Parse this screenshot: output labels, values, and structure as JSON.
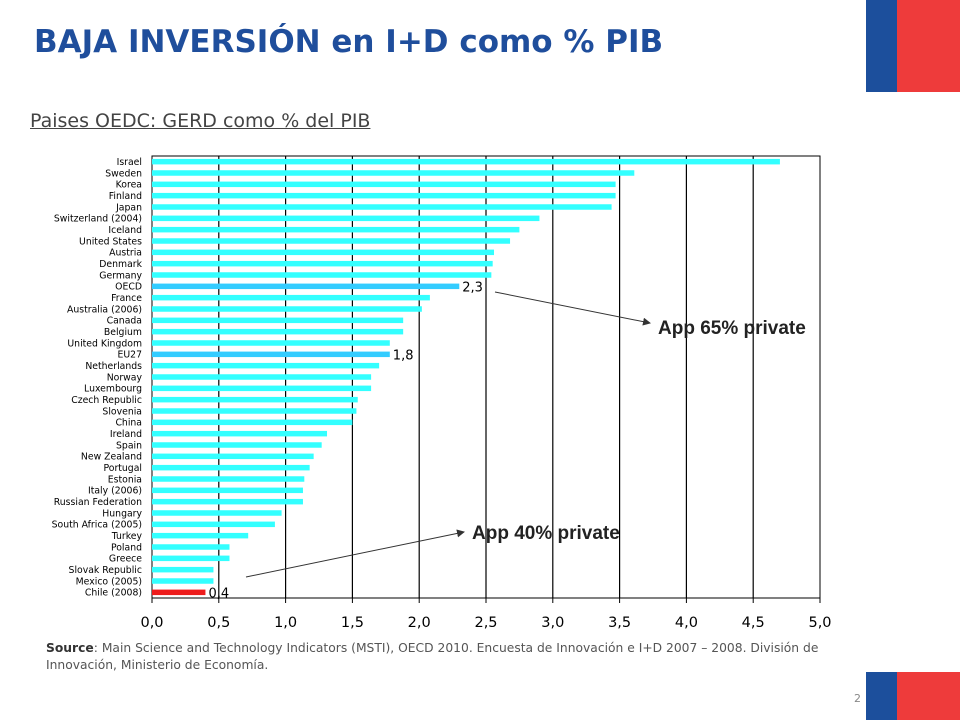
{
  "title": "BAJA INVERSIÓN en I+D como % PIB",
  "subtitle": "Paises OEDC: GERD como % del PIB",
  "source": {
    "label": "Source",
    "text": ":  Main Science and Technology Indicators (MSTI), OECD 2010.  Encuesta de Innovación e I+D 2007 – 2008. División de Innovación, Ministerio de Economía."
  },
  "page_number": "2",
  "colors": {
    "title": "#1f4e9c",
    "bar": "#33ffff",
    "bar_highlight": "#33ccff",
    "bar_chile": "#ee1c1c",
    "flag_blue": "#1c4f9c",
    "flag_red": "#ee3b3b"
  },
  "chart_data": {
    "type": "bar",
    "orientation": "horizontal",
    "categories": [
      "Israel",
      "Sweden",
      "Korea",
      "Finland",
      "Japan",
      "Switzerland (2004)",
      "Iceland",
      "United States",
      "Austria",
      "Denmark",
      "Germany",
      "OECD",
      "France",
      "Australia (2006)",
      "Canada",
      "Belgium",
      "United Kingdom",
      "EU27",
      "Netherlands",
      "Norway",
      "Luxembourg",
      "Czech Republic",
      "Slovenia",
      "China",
      "Ireland",
      "Spain",
      "New Zealand",
      "Portugal",
      "Estonia",
      "Italy (2006)",
      "Russian Federation",
      "Hungary",
      "South Africa (2005)",
      "Turkey",
      "Poland",
      "Greece",
      "Slovak Republic",
      "Mexico (2005)",
      "Chile (2008)"
    ],
    "values": [
      4.7,
      3.61,
      3.47,
      3.47,
      3.44,
      2.9,
      2.75,
      2.68,
      2.56,
      2.55,
      2.54,
      2.3,
      2.08,
      2.02,
      1.88,
      1.88,
      1.78,
      1.78,
      1.7,
      1.64,
      1.64,
      1.54,
      1.53,
      1.5,
      1.31,
      1.27,
      1.21,
      1.18,
      1.14,
      1.13,
      1.13,
      0.97,
      0.92,
      0.72,
      0.58,
      0.58,
      0.46,
      0.46,
      0.4
    ],
    "highlighted": [
      "OECD",
      "EU27",
      "Chile (2008)"
    ],
    "data_labels": [
      {
        "category": "OECD",
        "text": "2,3"
      },
      {
        "category": "EU27",
        "text": "1,8"
      },
      {
        "category": "Chile (2008)",
        "text": "0,4"
      }
    ],
    "xlim": [
      0,
      5
    ],
    "xticks": [
      "0,0",
      "0,5",
      "1,0",
      "1,5",
      "2,0",
      "2,5",
      "3,0",
      "3,5",
      "4,0",
      "4,5",
      "5,0"
    ],
    "grid": true,
    "annotations": [
      {
        "text": "App 65% private",
        "target": "OECD"
      },
      {
        "text": "App 40% private",
        "target": "Chile (2008)"
      }
    ]
  }
}
